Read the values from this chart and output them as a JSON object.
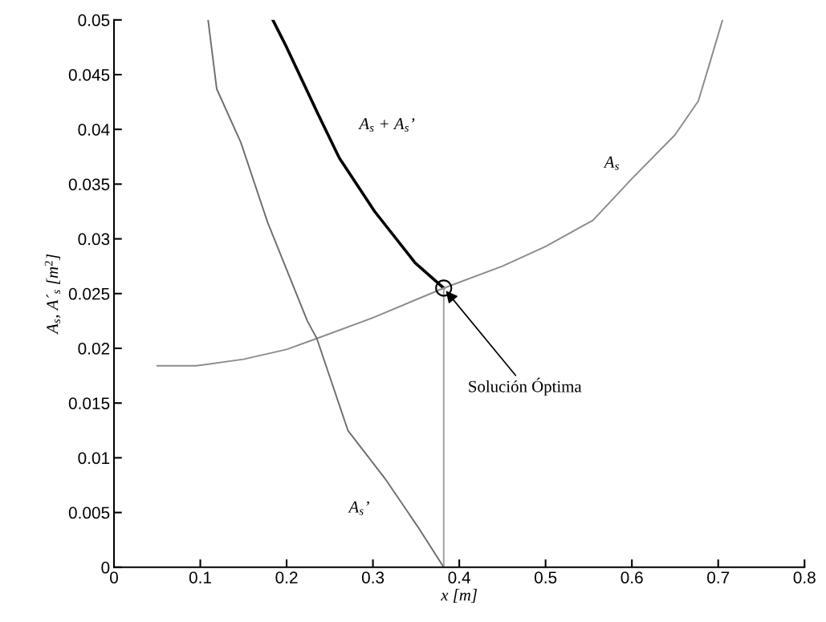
{
  "chart_data": {
    "type": "line",
    "xlabel": "x [m]",
    "ylabel": "A$_{s}$, A´$_{s}$ [m$^{2}$]",
    "xlim": [
      0,
      0.8
    ],
    "xticks": [
      0,
      0.1,
      0.2,
      0.3,
      0.4,
      0.5,
      0.6,
      0.7,
      0.8
    ],
    "ylim": [
      0,
      0.05
    ],
    "yticks": [
      0,
      0.005,
      0.01,
      0.015,
      0.02,
      0.025,
      0.03,
      0.035,
      0.04,
      0.045,
      0.05
    ],
    "grid": false,
    "legend": false,
    "series": [
      {
        "name": "A$_{s}$ + A$_{s}$’",
        "color": "#000000",
        "x": [
          0.184,
          0.2,
          0.237,
          0.261,
          0.302,
          0.349,
          0.382
        ],
        "values": [
          0.05,
          0.0475,
          0.0413,
          0.0374,
          0.0325,
          0.0278,
          0.0255
        ]
      },
      {
        "name": "A$_{s}$",
        "color": "#8c8c8c",
        "x": [
          0.05,
          0.095,
          0.15,
          0.2,
          0.235,
          0.3,
          0.382,
          0.45,
          0.5,
          0.555,
          0.6,
          0.65,
          0.677,
          0.69,
          0.705
        ],
        "values": [
          0.0184,
          0.0184,
          0.019,
          0.0199,
          0.0209,
          0.0228,
          0.0255,
          0.0275,
          0.0293,
          0.0317,
          0.0355,
          0.0395,
          0.0426,
          0.046,
          0.05
        ]
      },
      {
        "name": "A$_{s}$’",
        "color": "#6e6e6e",
        "x": [
          0.109,
          0.119,
          0.147,
          0.178,
          0.224,
          0.235,
          0.271,
          0.314,
          0.352,
          0.382
        ],
        "values": [
          0.05,
          0.0437,
          0.0388,
          0.0315,
          0.0225,
          0.0209,
          0.0125,
          0.0081,
          0.0037,
          0
        ]
      },
      {
        "color": "#a0a0a0",
        "x": [
          0.382,
          0.382
        ],
        "values": [
          0,
          0.0255
        ]
      },
      {
        "type": "scatter",
        "marker": "circle",
        "color": "#000000",
        "x": [
          0.382
        ],
        "values": [
          0.0255
        ]
      }
    ],
    "annotations": [
      {
        "text": "Solución Óptima",
        "x": 0.382,
        "y": 0.0255
      }
    ]
  }
}
